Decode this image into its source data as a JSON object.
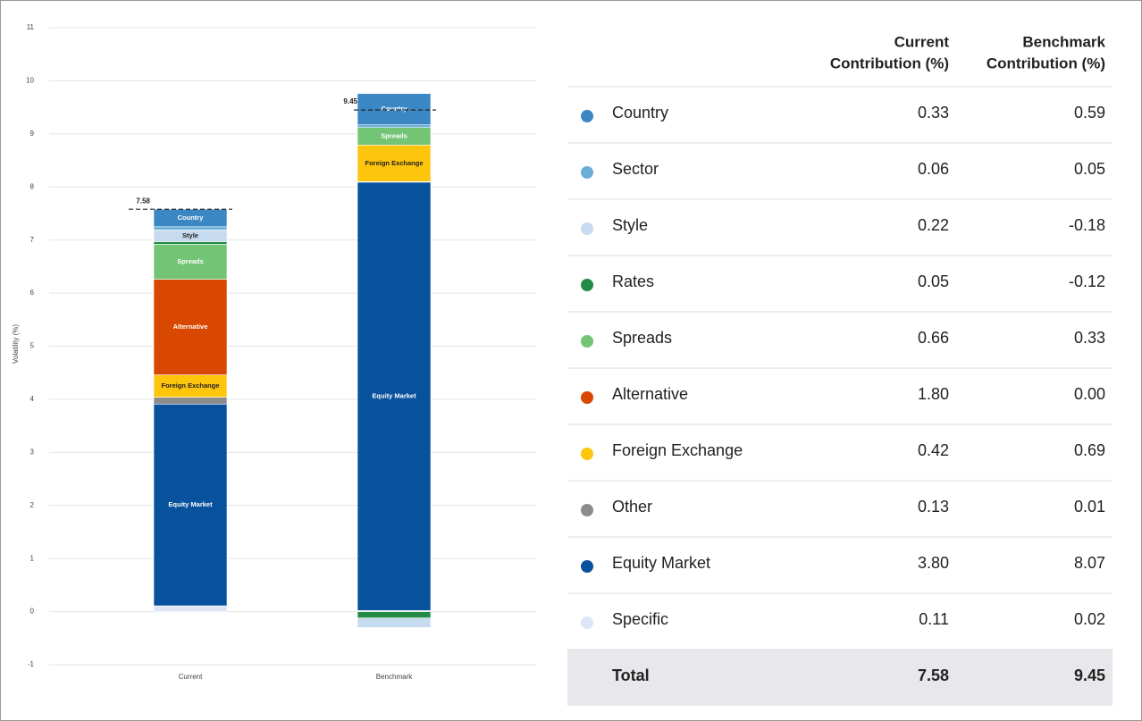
{
  "chart_data": {
    "type": "bar",
    "stacked": true,
    "ylabel": "Volatility (%)",
    "categories": [
      "Current",
      "Benchmark"
    ],
    "ylim": [
      -1,
      11
    ],
    "yticks": [
      -1,
      0,
      1,
      2,
      3,
      4,
      5,
      6,
      7,
      8,
      9,
      10,
      11
    ],
    "grid": true,
    "series": [
      {
        "name": "Country",
        "color": "#3a87c4",
        "values": [
          0.33,
          0.59
        ],
        "value_labels": [
          "0.33",
          "0.59"
        ]
      },
      {
        "name": "Sector",
        "color": "#6baed6",
        "values": [
          0.06,
          0.05
        ],
        "value_labels": [
          "0.06",
          "0.05"
        ]
      },
      {
        "name": "Style",
        "color": "#c6dbef",
        "values": [
          0.22,
          -0.18
        ],
        "value_labels": [
          "0.22",
          "-0.18"
        ]
      },
      {
        "name": "Rates",
        "color": "#238b45",
        "values": [
          0.05,
          -0.12
        ],
        "value_labels": [
          "0.05",
          "-0.12"
        ]
      },
      {
        "name": "Spreads",
        "color": "#74c476",
        "values": [
          0.66,
          0.33
        ],
        "value_labels": [
          "0.66",
          "0.33"
        ]
      },
      {
        "name": "Alternative",
        "color": "#d94801",
        "values": [
          1.8,
          0.0
        ],
        "value_labels": [
          "1.80",
          "0.00"
        ]
      },
      {
        "name": "Foreign Exchange",
        "color": "#fdc50c",
        "values": [
          0.42,
          0.69
        ],
        "value_labels": [
          "0.42",
          "0.69"
        ]
      },
      {
        "name": "Other",
        "color": "#8c8c8c",
        "values": [
          0.13,
          0.01
        ],
        "value_labels": [
          "0.13",
          "0.01"
        ]
      },
      {
        "name": "Equity Market",
        "color": "#08519c",
        "values": [
          3.8,
          8.07
        ],
        "value_labels": [
          "3.80",
          "8.07"
        ]
      },
      {
        "name": "Specific",
        "color": "#dde6f7",
        "values": [
          0.11,
          0.02
        ],
        "value_labels": [
          "0.11",
          "0.02"
        ]
      }
    ],
    "totals": [
      7.58,
      9.45
    ],
    "total_labels": [
      "7.58",
      "9.45"
    ],
    "table_headers": [
      [
        "Current",
        "Contribution (%)"
      ],
      [
        "Benchmark",
        "Contribution (%)"
      ]
    ],
    "total_label": "Total"
  }
}
